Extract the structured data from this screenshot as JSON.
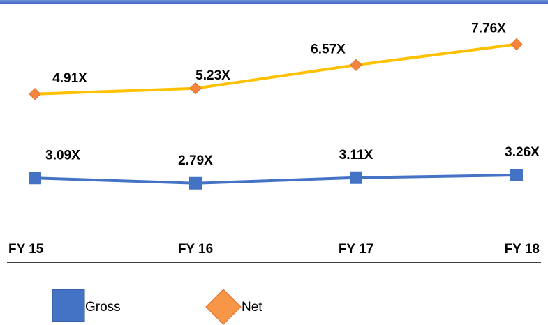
{
  "chart_data": {
    "type": "line",
    "categories": [
      "FY 15",
      "FY 16",
      "FY 17",
      "FY 18"
    ],
    "series": [
      {
        "name": "Gross",
        "color": "#4472c4",
        "marker": "square",
        "axis": "y2",
        "values": [
          3.09,
          2.79,
          3.11,
          3.26
        ],
        "value_labels": [
          "3.09X",
          "2.79X",
          "3.11X",
          "3.26X"
        ]
      },
      {
        "name": "Net",
        "color": "#ffc000",
        "marker_color": "#f7843c",
        "marker": "diamond",
        "values": [
          4.91,
          5.23,
          6.57,
          7.76
        ],
        "value_labels": [
          "4.91X",
          "5.23X",
          "6.57X",
          "7.76X"
        ]
      }
    ],
    "ylim": [
      -3.5,
      9.5
    ],
    "y2lim": [
      -0.5,
      12.5
    ],
    "grid": false
  }
}
